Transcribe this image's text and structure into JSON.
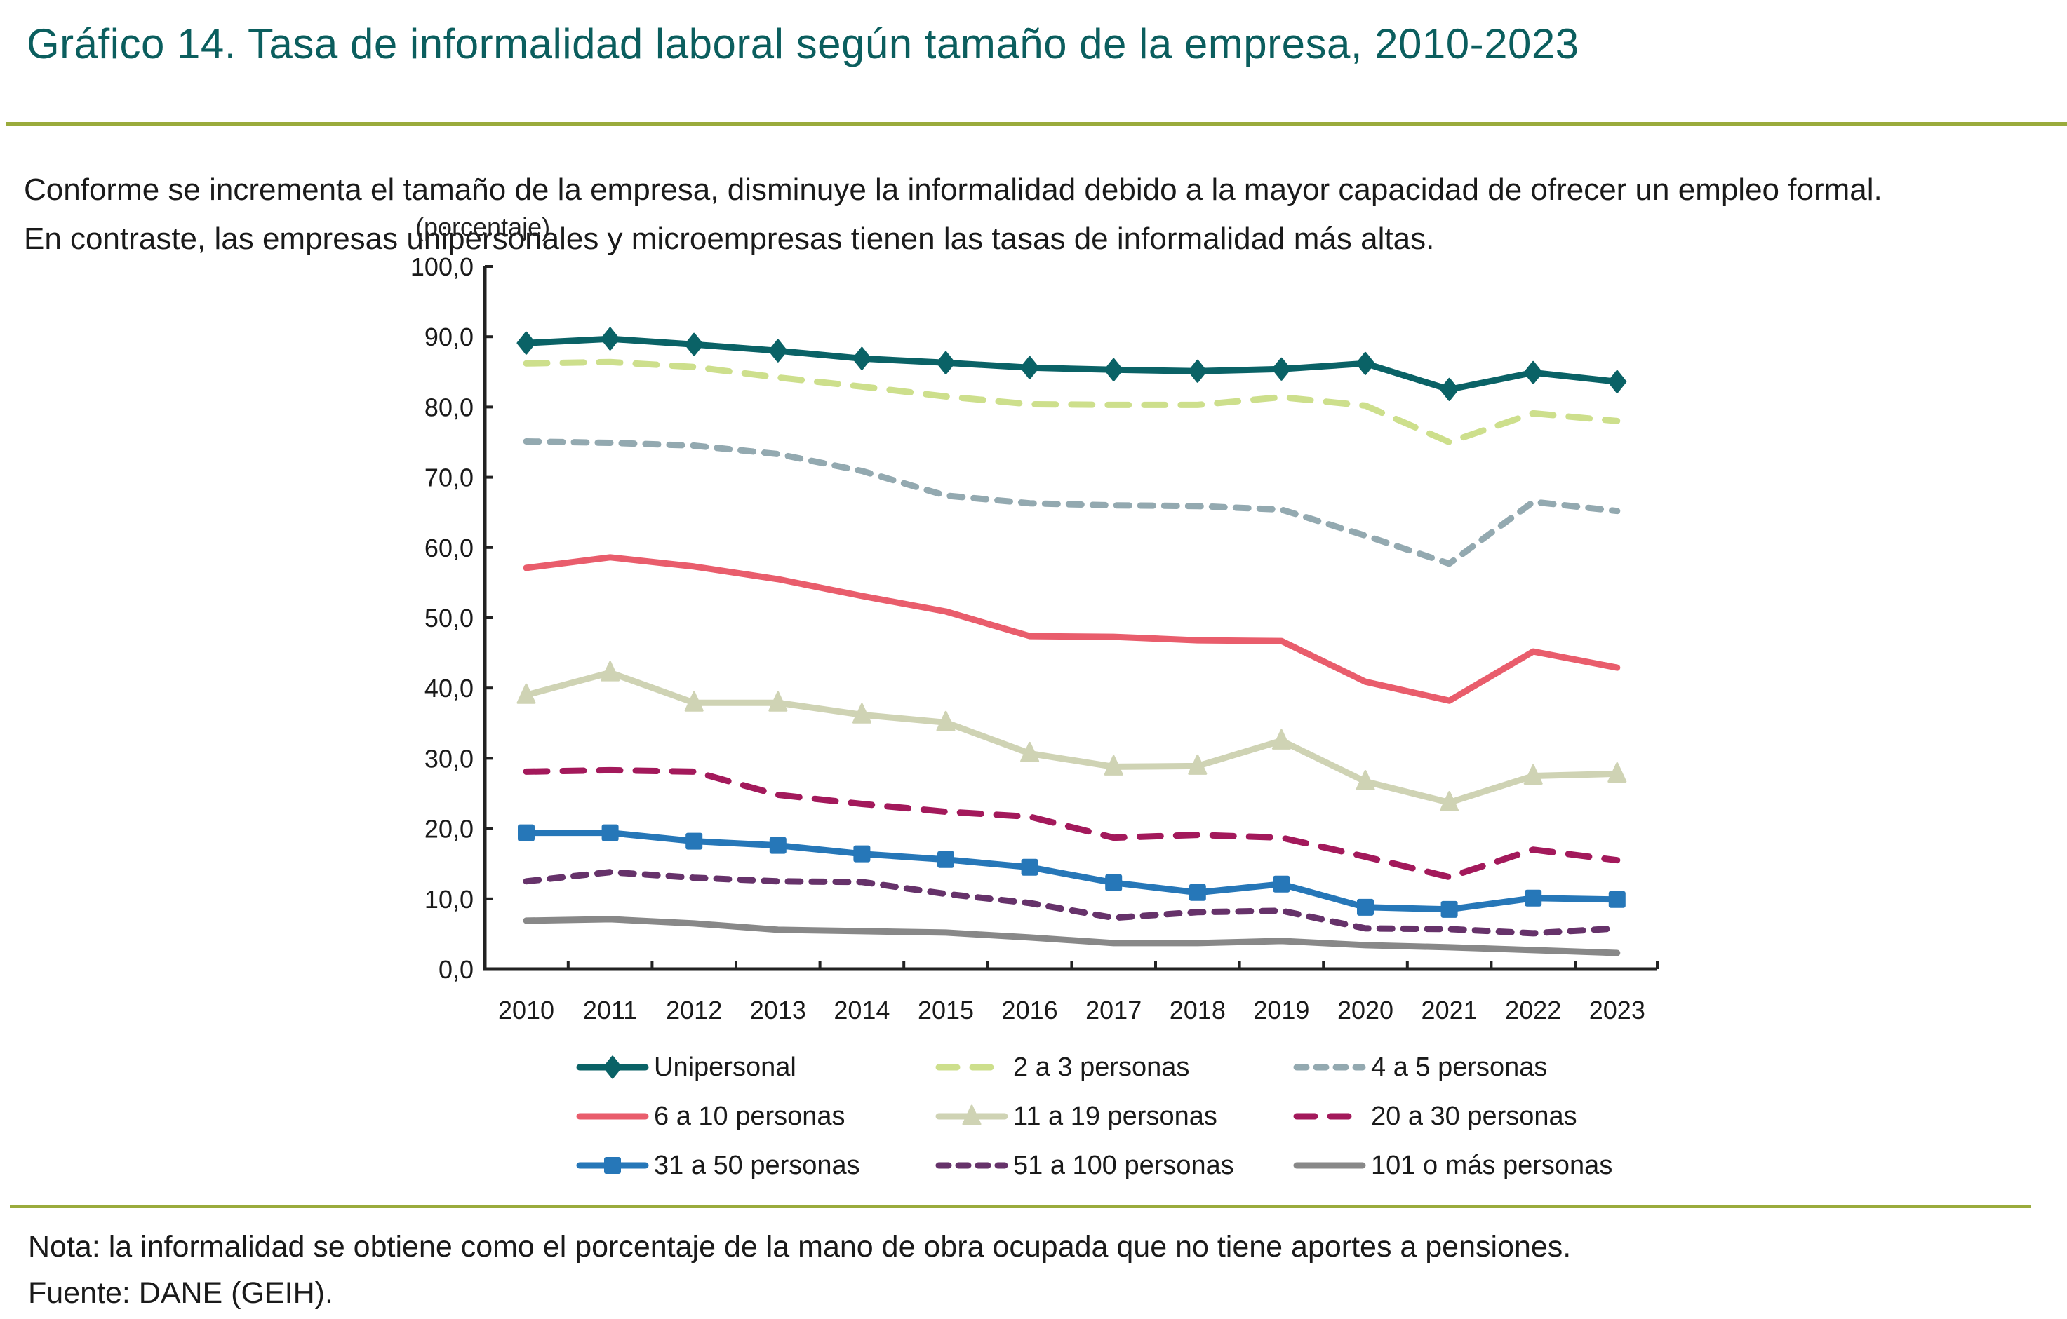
{
  "header": {
    "title": "Gráfico 14. Tasa de informalidad laboral según tamaño de la empresa, 2010-2023",
    "subtitle_lines": [
      "Conforme se incrementa el tamaño de la empresa, disminuye la informalidad debido a la mayor capacidad de ofrecer un empleo formal.",
      "En contraste, las empresas unipersonales y microempresas tienen las tasas de informalidad más altas."
    ]
  },
  "footer": {
    "note": "Nota: la informalidad se obtiene como el porcentaje de la mano de obra ocupada que no tiene aportes a pensiones.",
    "source": "Fuente: DANE (GEIH)."
  },
  "colors": {
    "title": "#0b5e5e",
    "rule": "#9aab3c"
  },
  "chart_data": {
    "type": "line",
    "title": "Tasa de informalidad laboral según tamaño de la empresa, 2010-2023",
    "ylabel": "(porcentaje)",
    "xlabel": "",
    "ylim": [
      0,
      100
    ],
    "yticks": [
      "0,0",
      "10,0",
      "20,0",
      "30,0",
      "40,0",
      "50,0",
      "60,0",
      "70,0",
      "80,0",
      "90,0",
      "100,0"
    ],
    "ytick_values": [
      0,
      10,
      20,
      30,
      40,
      50,
      60,
      70,
      80,
      90,
      100
    ],
    "grid": false,
    "legend_position": "bottom",
    "categories": [
      "2010",
      "2011",
      "2012",
      "2013",
      "2014",
      "2015",
      "2016",
      "2017",
      "2018",
      "2019",
      "2020",
      "2021",
      "2022",
      "2023"
    ],
    "series": [
      {
        "name": "Unipersonal",
        "color": "#0a6266",
        "style": "solid",
        "marker": "diamond",
        "values": [
          89.1,
          89.7,
          88.9,
          88.0,
          86.9,
          86.3,
          85.6,
          85.3,
          85.1,
          85.4,
          86.2,
          82.5,
          84.9,
          83.6
        ]
      },
      {
        "name": "2 a 3 personas",
        "color": "#cddf8c",
        "style": "dashed",
        "marker": "none",
        "values": [
          86.2,
          86.4,
          85.7,
          84.2,
          82.9,
          81.5,
          80.4,
          80.3,
          80.3,
          81.4,
          80.2,
          75.0,
          79.1,
          78.0
        ]
      },
      {
        "name": "4 a 5 personas",
        "color": "#93a9b0",
        "style": "short-dashed",
        "marker": "none",
        "values": [
          75.1,
          74.9,
          74.5,
          73.3,
          70.9,
          67.4,
          66.3,
          66.0,
          65.9,
          65.4,
          61.7,
          57.7,
          66.5,
          65.2
        ]
      },
      {
        "name": "6 a 10 personas",
        "color": "#e95d6c",
        "style": "solid",
        "marker": "none",
        "values": [
          57.1,
          58.6,
          57.3,
          55.5,
          53.1,
          50.9,
          47.4,
          47.3,
          46.8,
          46.7,
          40.9,
          38.2,
          45.2,
          42.9
        ]
      },
      {
        "name": "11 a 19 personas",
        "color": "#cfd3b4",
        "style": "solid",
        "marker": "triangle",
        "values": [
          39.0,
          42.2,
          37.9,
          37.9,
          36.2,
          35.1,
          30.7,
          28.8,
          28.9,
          32.5,
          26.7,
          23.7,
          27.5,
          27.8
        ]
      },
      {
        "name": "20 a 30 personas",
        "color": "#a3195b",
        "style": "dashed",
        "marker": "none",
        "values": [
          28.1,
          28.3,
          28.1,
          24.8,
          23.5,
          22.4,
          21.7,
          18.7,
          19.1,
          18.7,
          16.0,
          13.1,
          17.0,
          15.5
        ]
      },
      {
        "name": "31 a 50 personas",
        "color": "#2677b8",
        "style": "solid",
        "marker": "square",
        "values": [
          19.4,
          19.4,
          18.2,
          17.6,
          16.4,
          15.6,
          14.5,
          12.3,
          10.9,
          12.1,
          8.8,
          8.5,
          10.1,
          9.9
        ]
      },
      {
        "name": "51 a 100 personas",
        "color": "#66326a",
        "style": "short-dashed",
        "marker": "none",
        "values": [
          12.5,
          13.8,
          13.0,
          12.5,
          12.4,
          10.7,
          9.4,
          7.3,
          8.1,
          8.3,
          5.8,
          5.7,
          5.1,
          5.8
        ]
      },
      {
        "name": "101 o más personas",
        "color": "#888888",
        "style": "solid",
        "marker": "none",
        "values": [
          6.9,
          7.1,
          6.5,
          5.6,
          5.4,
          5.2,
          4.5,
          3.7,
          3.7,
          4.0,
          3.4,
          3.1,
          2.7,
          2.3
        ]
      }
    ]
  }
}
